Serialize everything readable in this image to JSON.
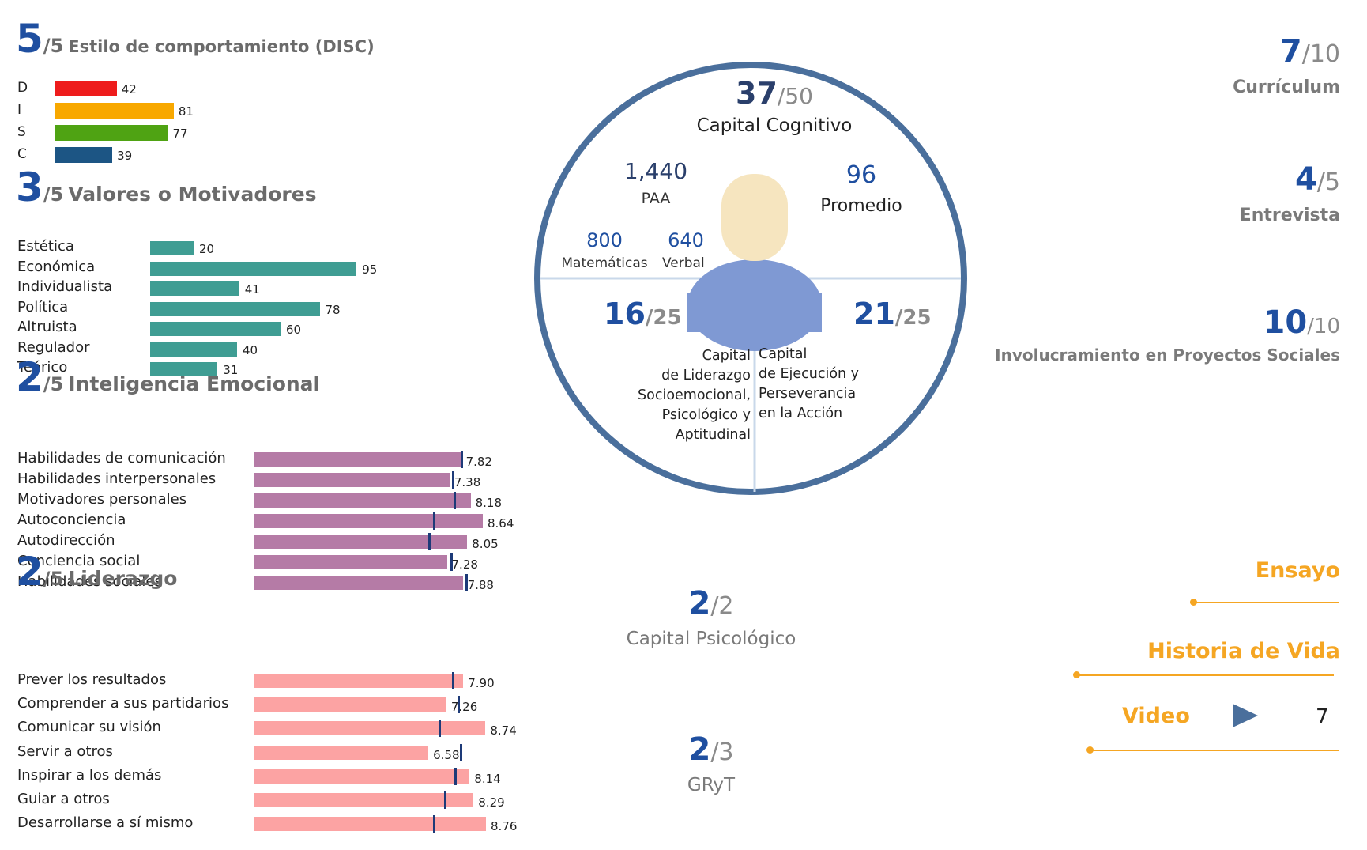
{
  "disc": {
    "score": "5",
    "total": "/5",
    "title": "Estilo de comportamiento (DISC)",
    "items": [
      {
        "label": "D",
        "value": 42,
        "color": "#ee1c1c"
      },
      {
        "label": "I",
        "value": 81,
        "color": "#f8a800"
      },
      {
        "label": "S",
        "value": 77,
        "color": "#4fa313"
      },
      {
        "label": "C",
        "value": 39,
        "color": "#1c5584"
      }
    ]
  },
  "valores": {
    "score": "3",
    "total": "/5",
    "title": "Valores o Motivadores",
    "color": "#3f9d93",
    "items": [
      {
        "label": "Estética",
        "value": 20
      },
      {
        "label": "Económica",
        "value": 95
      },
      {
        "label": "Individualista",
        "value": 41
      },
      {
        "label": "Política",
        "value": 78
      },
      {
        "label": "Altruista",
        "value": 60
      },
      {
        "label": "Regulador",
        "value": 40
      },
      {
        "label": "Teórico",
        "value": 31
      }
    ]
  },
  "emocional": {
    "score": "2",
    "total": "/5",
    "title": "Inteligencia Emocional",
    "color": "#b57ba6",
    "items": [
      {
        "label": "Habilidades de comunicación",
        "value": 7.82,
        "display": "7.82",
        "reference": 7.82
      },
      {
        "label": "Habilidades interpersonales",
        "value": 7.38,
        "display": "7.38",
        "reference": 7.5
      },
      {
        "label": "Motivadores personales",
        "value": 8.18,
        "display": "8.18",
        "reference": 7.55
      },
      {
        "label": "Autoconciencia",
        "value": 8.64,
        "display": "8.64",
        "reference": 6.8
      },
      {
        "label": "Autodirección",
        "value": 8.05,
        "display": "8.05",
        "reference": 6.6
      },
      {
        "label": "Conciencia social",
        "value": 7.28,
        "display": "7.28",
        "reference": 7.45
      },
      {
        "label": "Habilidades sociales",
        "value": 7.88,
        "display": "7.88",
        "reference": 8.0
      }
    ]
  },
  "liderazgo": {
    "score": "2",
    "total": "/5",
    "title": "Liderazgo",
    "color": "#fca3a3",
    "items": [
      {
        "label": "Prever los resultados",
        "value": 7.9,
        "display": "7.90",
        "reference": 7.5
      },
      {
        "label": "Comprender a sus partidarios",
        "value": 7.26,
        "display": "7.26",
        "reference": 7.7
      },
      {
        "label": "Comunicar su visión",
        "value": 8.74,
        "display": "8.74",
        "reference": 7.0
      },
      {
        "label": "Servir a otros",
        "value": 6.58,
        "display": "6.58",
        "reference": 7.8
      },
      {
        "label": "Inspirar a los demás",
        "value": 8.14,
        "display": "8.14",
        "reference": 7.6
      },
      {
        "label": "Guiar a otros",
        "value": 8.29,
        "display": "8.29",
        "reference": 7.2
      },
      {
        "label": "Desarrollarse a sí mismo",
        "value": 8.76,
        "display": "8.76",
        "reference": 6.8
      }
    ]
  },
  "circle": {
    "cognitivo": {
      "score": "37",
      "total": "/50",
      "label": "Capital Cognitivo"
    },
    "paa": {
      "value": "1,440",
      "label": "PAA"
    },
    "promedio": {
      "value": "96",
      "label": "Promedio"
    },
    "matematicas": {
      "value": "800",
      "label": "Matemáticas"
    },
    "verbal": {
      "value": "640",
      "label": "Verbal"
    },
    "liderazgo": {
      "score": "16",
      "total": "/25",
      "lines": [
        "Capital",
        "de Liderazgo",
        "Socioemocional,",
        "Psicológico y",
        "Aptitudinal"
      ]
    },
    "ejecucion": {
      "score": "21",
      "total": "/25",
      "lines": [
        "Capital",
        "de Ejecución y",
        "Perseverancia",
        "en la Acción"
      ]
    }
  },
  "psicologico": {
    "score": "2",
    "total": "/2",
    "label": "Capital Psicológico"
  },
  "gryt": {
    "score": "2",
    "total": "/3",
    "label": "GRyT"
  },
  "right": {
    "curriculum": {
      "score": "7",
      "total": "/10",
      "label": "Currículum"
    },
    "entrevista": {
      "score": "4",
      "total": "/5",
      "label": "Entrevista"
    },
    "involucramiento": {
      "score": "10",
      "total": "/10",
      "label": "Involucramiento en Proyectos Sociales"
    },
    "ensayo": "Ensayo",
    "historia": "Historia de Vida",
    "video": {
      "label": "Video",
      "value": "7"
    }
  },
  "colors": {
    "accent": "#1f4fa0",
    "circle": "#4a6f9c",
    "orange": "#f5a623",
    "avatar_head": "#f6e5bf",
    "avatar_body": "#7f99d3"
  }
}
